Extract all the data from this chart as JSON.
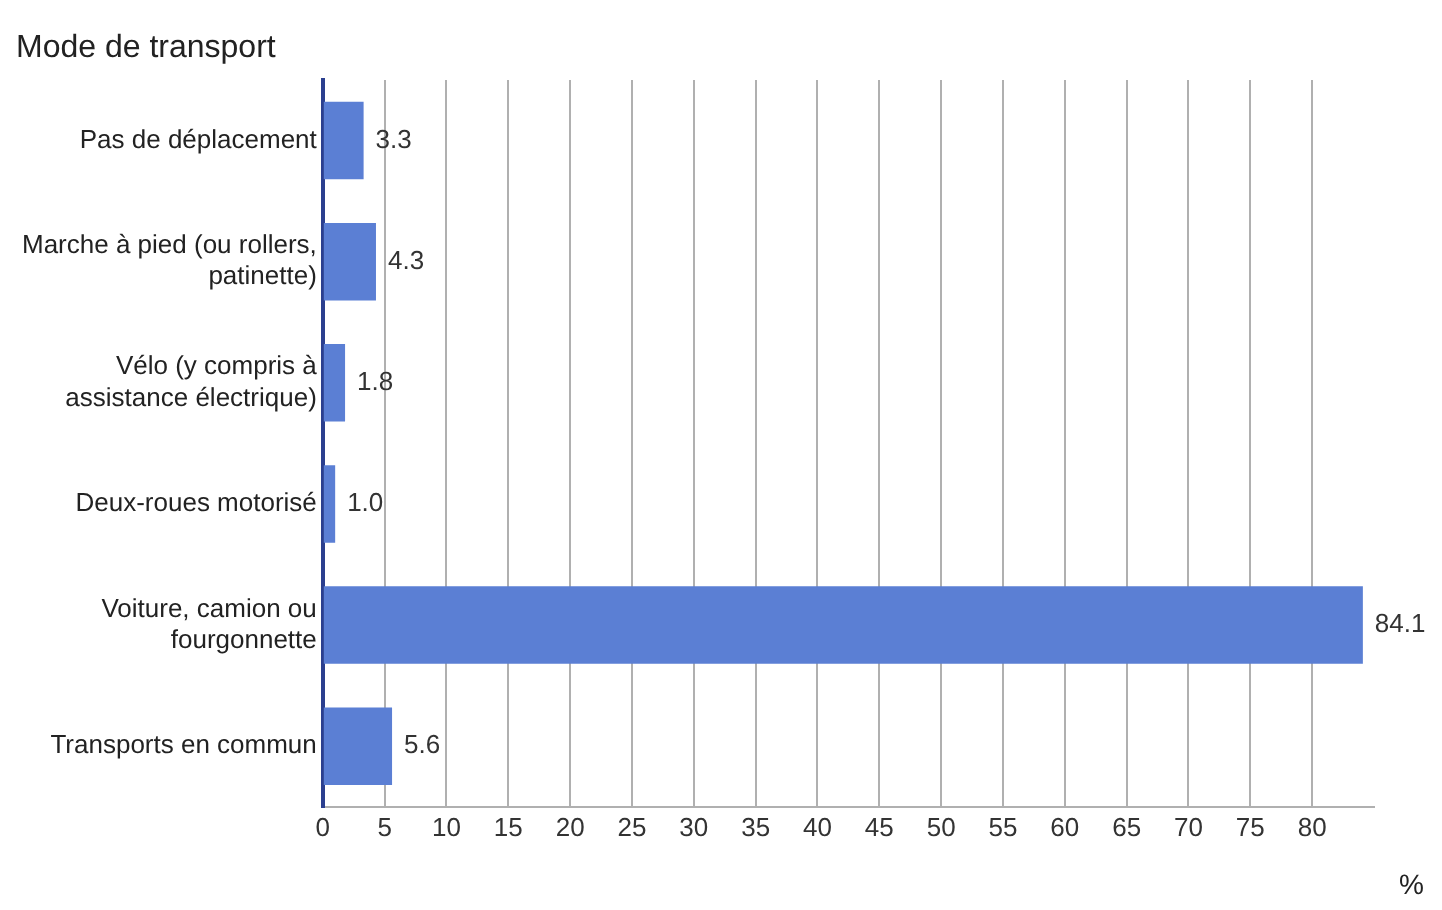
{
  "chart_data": {
    "type": "bar",
    "orientation": "horizontal",
    "ylabel": "Mode de transport",
    "xlabel": "%",
    "categories": [
      "Pas de déplacement",
      "Marche à pied (ou rollers, patinette)",
      "Vélo (y compris à assistance électrique)",
      "Deux-roues motorisé",
      "Voiture, camion ou fourgonnette",
      "Transports en commun"
    ],
    "values": [
      3.3,
      4.3,
      1.8,
      1.0,
      84.1,
      5.6
    ],
    "value_labels": [
      "3.3",
      "4.3",
      "1.8",
      "1.0",
      "84.1",
      "5.6"
    ],
    "color": "#5b7fd4",
    "xlim": [
      0,
      85
    ],
    "xticks": [
      0,
      5,
      10,
      15,
      20,
      25,
      30,
      35,
      40,
      45,
      50,
      55,
      60,
      65,
      70,
      75,
      80
    ],
    "grid": "x",
    "legend": false
  }
}
